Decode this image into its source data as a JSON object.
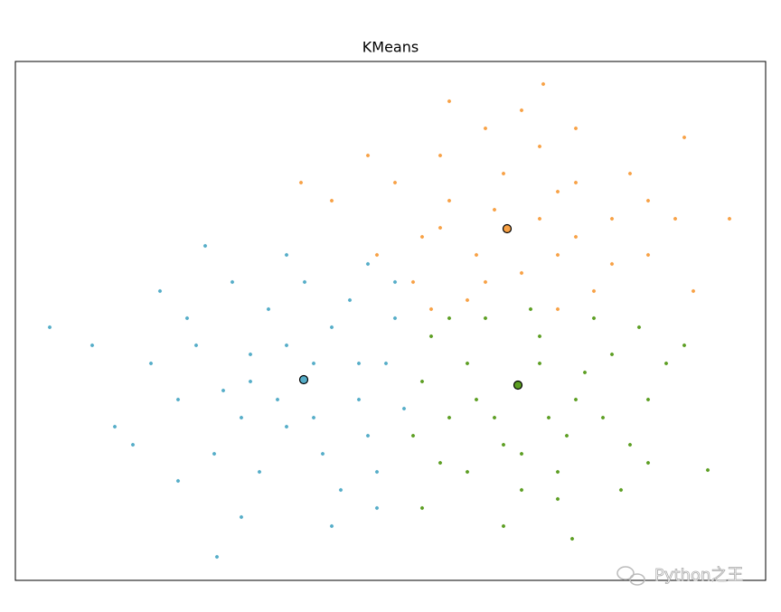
{
  "chart_data": {
    "type": "scatter",
    "title": "KMeans",
    "xlim": [
      0,
      830
    ],
    "ylim": [
      0,
      574
    ],
    "watermark": "Python之王",
    "series": [
      {
        "color": "#55adc8",
        "x": [
          319,
          260,
          380,
          300,
          350,
          230,
          410,
          280,
          340,
          200,
          390,
          250,
          320,
          180,
          420,
          270,
          360,
          150,
          430,
          300,
          220,
          370,
          240,
          400,
          290,
          330,
          190,
          110,
          85,
          38,
          223,
          400,
          350,
          180,
          250,
          130,
          420,
          300,
          380,
          260,
          210,
          330,
          160,
          390
        ],
        "y": [
          222,
          250,
          200,
          170,
          280,
          210,
          240,
          300,
          140,
          260,
          160,
          180,
          330,
          200,
          290,
          120,
          100,
          240,
          190,
          260,
          140,
          310,
          330,
          120,
          200,
          180,
          290,
          170,
          260,
          280,
          26,
          80,
          60,
          110,
          70,
          150,
          330,
          360,
          240,
          220,
          370,
          240,
          320,
          350
        ],
        "center": [
          319,
          222
        ]
      },
      {
        "color": "#f8a145",
        "x": [
          544,
          480,
          600,
          520,
          620,
          450,
          580,
          500,
          660,
          420,
          700,
          560,
          470,
          640,
          540,
          600,
          390,
          730,
          520,
          680,
          440,
          580,
          510,
          750,
          620,
          480,
          350,
          316,
          790,
          584,
          740,
          460,
          560,
          660,
          400,
          700,
          530,
          600,
          470,
          620
        ],
        "y": [
          389,
          420,
          360,
          330,
          440,
          380,
          480,
          310,
          400,
          440,
          360,
          520,
          470,
          320,
          450,
          300,
          470,
          400,
          500,
          450,
          330,
          400,
          360,
          320,
          500,
          530,
          420,
          440,
          400,
          549,
          490,
          300,
          340,
          350,
          360,
          420,
          410,
          430,
          390,
          380
        ],
        "center": [
          544,
          389
        ]
      },
      {
        "color": "#5c9e22",
        "x": [
          556,
          500,
          620,
          580,
          480,
          660,
          540,
          600,
          450,
          700,
          520,
          640,
          560,
          470,
          680,
          590,
          510,
          630,
          460,
          720,
          540,
          616,
          766,
          450,
          670,
          580,
          500,
          610,
          690,
          740,
          530,
          650,
          570,
          480,
          600,
          700,
          440,
          560
        ],
        "y": [
          216,
          240,
          200,
          270,
          180,
          250,
          150,
          120,
          220,
          200,
          290,
          290,
          100,
          130,
          150,
          180,
          200,
          230,
          270,
          240,
          60,
          46,
          122,
          80,
          100,
          240,
          120,
          160,
          280,
          260,
          180,
          180,
          300,
          290,
          90,
          130,
          160,
          140
        ],
        "center": [
          556,
          216
        ]
      }
    ]
  }
}
